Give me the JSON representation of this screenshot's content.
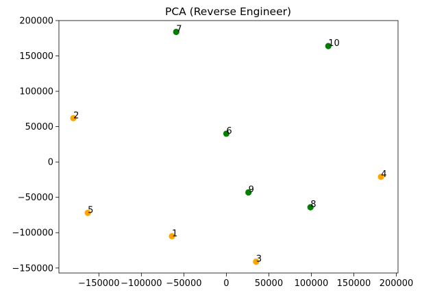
{
  "chart_data": {
    "type": "scatter",
    "title": "PCA (Reverse Engineer)",
    "xlabel": "",
    "ylabel": "",
    "xlim": [
      -197000,
      202000
    ],
    "ylim": [
      -157000,
      200000
    ],
    "x_ticks": [
      -150000,
      -100000,
      -50000,
      0,
      50000,
      100000,
      150000,
      200000
    ],
    "x_tick_labels": [
      "−150000",
      "−100000",
      "−50000",
      "0",
      "50000",
      "100000",
      "150000",
      "200000"
    ],
    "y_ticks": [
      -150000,
      -100000,
      -50000,
      0,
      50000,
      100000,
      150000,
      200000
    ],
    "y_tick_labels": [
      "−150000",
      "−100000",
      "−50000",
      "0",
      "50000",
      "100000",
      "150000",
      "200000"
    ],
    "grid": false,
    "legend": false,
    "colors": {
      "orange": "#FFA500",
      "green": "#008000"
    },
    "points": [
      {
        "label": "1",
        "x": -64000,
        "y": -105000,
        "color": "orange"
      },
      {
        "label": "2",
        "x": -180000,
        "y": 62000,
        "color": "orange"
      },
      {
        "label": "3",
        "x": 35000,
        "y": -141000,
        "color": "orange"
      },
      {
        "label": "4",
        "x": 182000,
        "y": -21000,
        "color": "orange"
      },
      {
        "label": "5",
        "x": -163000,
        "y": -72000,
        "color": "orange"
      },
      {
        "label": "6",
        "x": 0,
        "y": 40000,
        "color": "green"
      },
      {
        "label": "7",
        "x": -59000,
        "y": 184000,
        "color": "green"
      },
      {
        "label": "8",
        "x": 99000,
        "y": -64000,
        "color": "green"
      },
      {
        "label": "9",
        "x": 26000,
        "y": -43000,
        "color": "green"
      },
      {
        "label": "10",
        "x": 120000,
        "y": 164000,
        "color": "green"
      }
    ]
  }
}
